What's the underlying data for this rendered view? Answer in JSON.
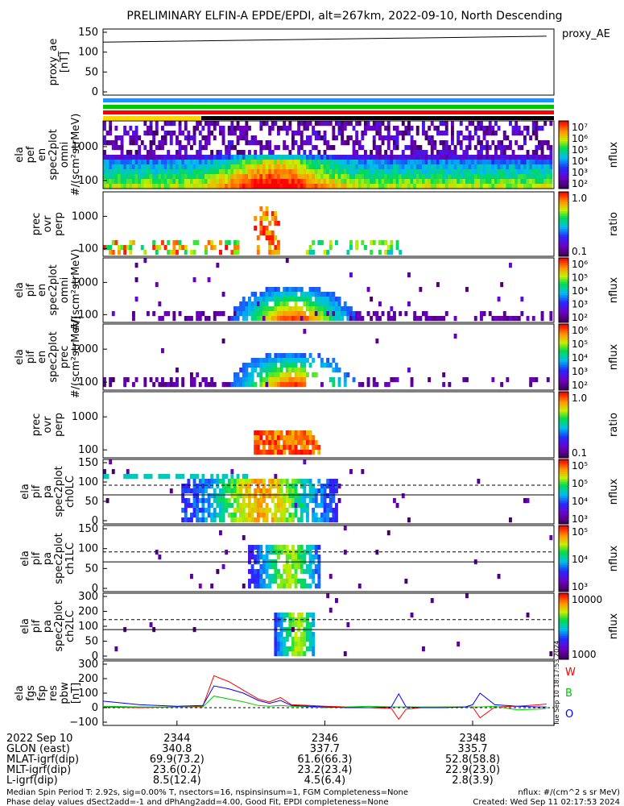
{
  "title": "PRELIMINARY ELFIN-A EPDE/EPDI, alt=267km, 2022-09-10, North Descending",
  "colors": {
    "ae_line": "#000000",
    "bar_blue": "#1e90ff",
    "bar_green": "#00c800",
    "bar_red": "#ff0000",
    "bar_yellow": "#ffd400",
    "bar_black": "#000000",
    "dash": "#000000"
  },
  "chart_data": [
    {
      "type": "line",
      "panel": "proxy_ae",
      "ylabel_lines": [
        "proxy_ae",
        "[nT]"
      ],
      "legend": "proxy_AE",
      "ylim": [
        0,
        150
      ],
      "yticks": [
        "150",
        "100",
        "50",
        "0"
      ],
      "series": [
        {
          "name": "proxy_AE",
          "x": [
            2343.0,
            2349.0
          ],
          "y": [
            125,
            140
          ]
        }
      ]
    },
    {
      "type": "heatmap",
      "panel": "elf_pef_en_spec2plot_omni",
      "ylabel_lines": [
        "ela",
        "pef",
        "en",
        "spec2plot",
        "omni",
        "#/(scm²strMeV)"
      ],
      "yticks": [
        "1000",
        "100"
      ],
      "colorbar": {
        "label": "nflux",
        "ticks": [
          "10⁷",
          "10⁶",
          "10⁵",
          "10⁴",
          "10³",
          "10²"
        ]
      }
    },
    {
      "type": "heatmap",
      "panel": "elf_pef_en_prec_ovr_perp",
      "ylabel_lines": [
        "prec",
        "ovr",
        "perp"
      ],
      "yticks": [
        "1000",
        "100"
      ],
      "colorbar": {
        "label": "ratio",
        "ticks": [
          "1.0",
          "0.1"
        ]
      }
    },
    {
      "type": "heatmap",
      "panel": "elf_pif_en_spec2plot_omni",
      "ylabel_lines": [
        "ela",
        "pif",
        "en",
        "spec2plot",
        "omni",
        "#/(scm²strMeV)"
      ],
      "yticks": [
        "1000",
        "100"
      ],
      "colorbar": {
        "label": "nflux",
        "ticks": [
          "10⁶",
          "10⁵",
          "10⁴",
          "10³",
          "10²"
        ]
      }
    },
    {
      "type": "heatmap",
      "panel": "elf_pif_en_spec2plot_prec",
      "ylabel_lines": [
        "ela",
        "pif",
        "en",
        "spec2plot",
        "prec",
        "#/(scm²strMeV)"
      ],
      "yticks": [
        "1000",
        "100"
      ],
      "colorbar": {
        "label": "nflux",
        "ticks": [
          "10⁶",
          "10⁵",
          "10⁴",
          "10³",
          "10²"
        ]
      }
    },
    {
      "type": "heatmap",
      "panel": "elf_pif_en_prec_ovr_perp",
      "ylabel_lines": [
        "prec",
        "ovr",
        "perp"
      ],
      "yticks": [
        "1000",
        "100"
      ],
      "colorbar": {
        "label": "ratio",
        "ticks": [
          "1.0",
          "0.1"
        ]
      }
    },
    {
      "type": "heatmap",
      "panel": "elf_pif_pa_ch0LC",
      "ylabel_lines": [
        "ela",
        "pif",
        "pa",
        "spec2plot",
        "ch0LC"
      ],
      "yticks": [
        "150",
        "100",
        "50",
        "0"
      ],
      "colorbar": {
        "label": "nflux",
        "ticks": [
          "10⁵",
          "10⁵",
          "10⁴",
          "10³"
        ]
      }
    },
    {
      "type": "heatmap",
      "panel": "elf_pif_pa_ch1LC",
      "ylabel_lines": [
        "ela",
        "pif",
        "pa",
        "spec2plot",
        "ch1LC"
      ],
      "yticks": [
        "150",
        "100",
        "50",
        "0"
      ],
      "colorbar": {
        "label": "nflux",
        "ticks": [
          "10⁵",
          "10⁴",
          "10³"
        ]
      }
    },
    {
      "type": "heatmap",
      "panel": "elf_pif_pa_ch2LC",
      "ylabel_lines": [
        "ela",
        "pif",
        "pa",
        "spec2plot",
        "ch2LC"
      ],
      "yticks": [
        "300",
        "200",
        "100",
        "50",
        "0"
      ],
      "colorbar": {
        "label": "nflux",
        "ticks": [
          "10000",
          "1000"
        ]
      }
    },
    {
      "type": "line",
      "panel": "ela_fgs_fsp_res_pbw",
      "ylabel_lines": [
        "ela",
        "fgs",
        "fsp",
        "res",
        "pbw",
        "[nT]"
      ],
      "ylim": [
        -100,
        300
      ],
      "yticks": [
        "300",
        "200",
        "100",
        "0",
        "−100"
      ],
      "series": [
        {
          "name": "W",
          "color": "#ff0000"
        },
        {
          "name": "B",
          "color": "#00c800"
        },
        {
          "name": "O",
          "color": "#0000ff"
        }
      ],
      "x": [
        2343.0,
        2343.5,
        2344.0,
        2344.35,
        2344.5,
        2344.7,
        2344.9,
        2345.1,
        2345.25,
        2345.4,
        2345.55,
        2345.8,
        2346.0,
        2346.3,
        2346.6,
        2346.9,
        2347.0,
        2347.1,
        2347.3,
        2347.6,
        2347.9,
        2348.0,
        2348.1,
        2348.3,
        2348.6,
        2348.9,
        2349.0
      ],
      "values_W": [
        5,
        0,
        5,
        10,
        220,
        180,
        120,
        60,
        40,
        70,
        20,
        15,
        10,
        5,
        0,
        -5,
        -80,
        -10,
        0,
        5,
        5,
        5,
        -70,
        5,
        10,
        20,
        25
      ],
      "values_B": [
        10,
        5,
        5,
        5,
        80,
        60,
        40,
        15,
        10,
        15,
        10,
        5,
        0,
        5,
        10,
        5,
        5,
        5,
        5,
        5,
        5,
        5,
        5,
        10,
        -15,
        -10,
        -5
      ],
      "values_O": [
        45,
        20,
        10,
        15,
        150,
        130,
        100,
        50,
        30,
        50,
        15,
        10,
        5,
        0,
        0,
        5,
        95,
        5,
        0,
        0,
        5,
        20,
        100,
        20,
        10,
        5,
        5
      ]
    }
  ],
  "time_axis": {
    "xlim": [
      2343.0,
      2349.1
    ],
    "ticks": [
      "2344",
      "2346",
      "2348"
    ],
    "tick_values": [
      2344,
      2346,
      2348
    ]
  },
  "footer_rows": [
    {
      "label": "2022 Sep 10",
      "values": [
        "2344",
        "2346",
        "2348"
      ]
    },
    {
      "label": "GLON (east)",
      "values": [
        "340.8",
        "337.7",
        "335.7"
      ]
    },
    {
      "label": "MLAT-igrf(dip)",
      "values": [
        "69.9(73.2)",
        "61.6(66.3)",
        "52.8(58.8)"
      ]
    },
    {
      "label": "MLT-igrf(dip)",
      "values": [
        "23.6(0.2)",
        "23.2(23.4)",
        "22.9(23.0)"
      ]
    },
    {
      "label": "L-igrf(dip)",
      "values": [
        "8.5(12.4)",
        "4.5(6.4)",
        "2.8(3.9)"
      ]
    }
  ],
  "notes": {
    "line1": "Median Spin Period T: 2.92s, sig=0.00% T, nsectors=16, nspinsinsum=1, FGM Completeness=None",
    "line2": "Phase delay values dSect2add=-1 and dPhAng2add=4.00, Good Fit, EPDI completeness=None",
    "right1": "nflux: #/(cm^2 s sr MeV)",
    "right2": "Created: Wed Sep 11 02:17:53 2024"
  },
  "vertical_stamp": "Tue Sep 10 18:17:53 2024"
}
